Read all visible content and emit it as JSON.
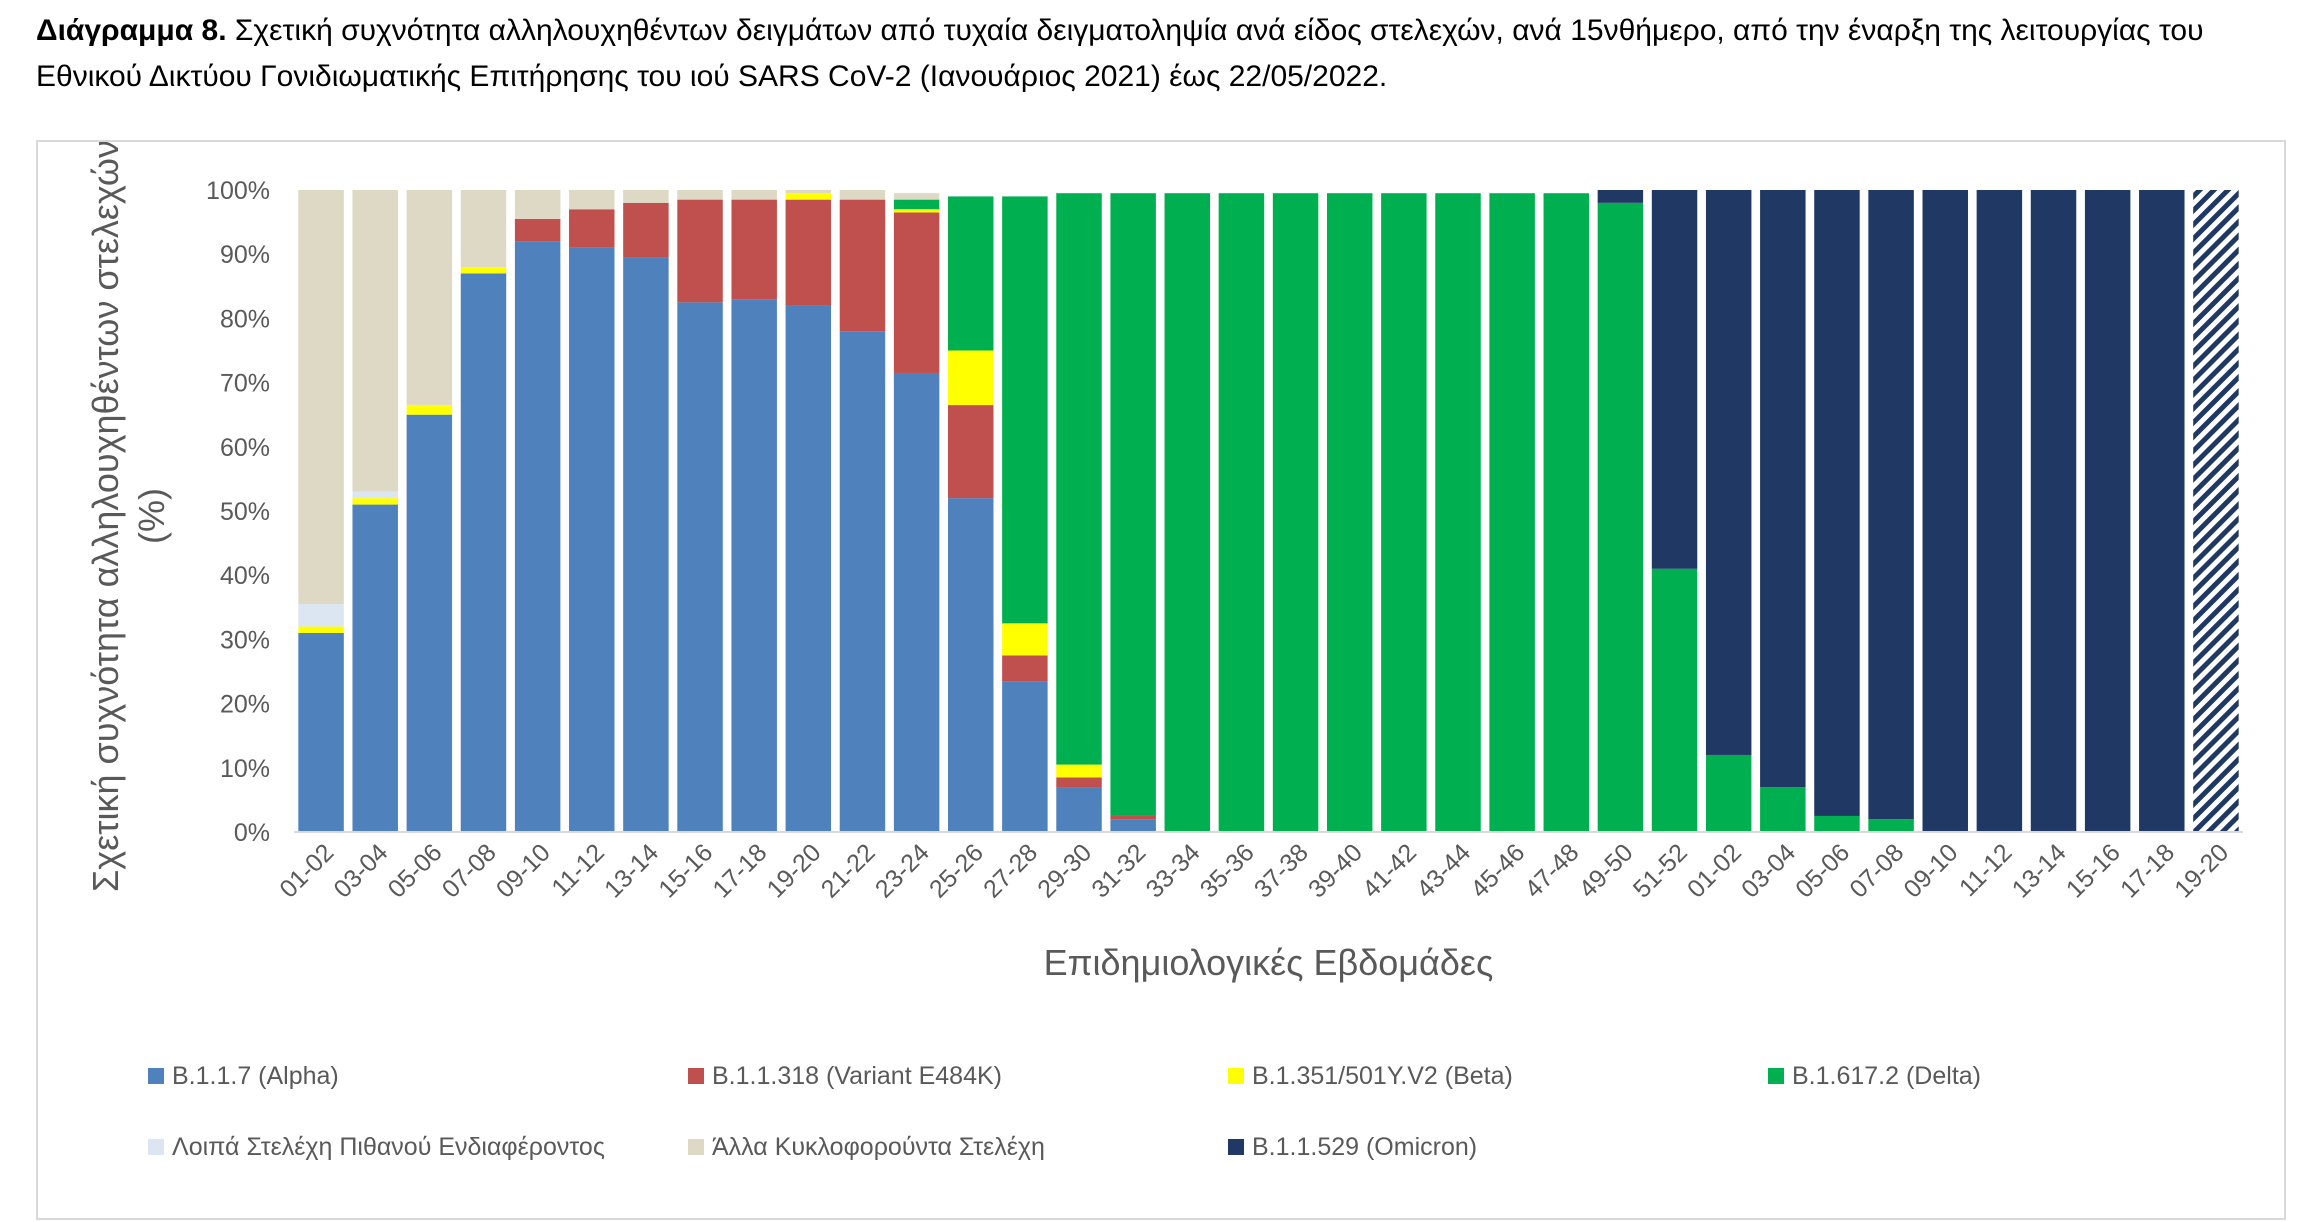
{
  "caption": {
    "bold": "Διάγραμμα 8.",
    "text": "Σχετική συχνότητα αλληλουχηθέντων δειγμάτων από τυχαία δειγματοληψία ανά είδος στελεχών, ανά 15νθήμερο, από την έναρξη της λειτουργίας του Εθνικού Δικτύου Γονιδιωματικής Επιτήρησης του ιού SARS CoV-2 (Ιανουάριος 2021) έως 22/05/2022."
  },
  "chart_data": {
    "type": "bar",
    "stacked": true,
    "xlabel": "Επιδημιολογικές Εβδομάδες",
    "ylabel": "Σχετική συχνότητα αλληλουχηθέντων στελεχών (%)",
    "ylim": [
      0,
      100
    ],
    "yticks": [
      "0%",
      "10%",
      "20%",
      "30%",
      "40%",
      "50%",
      "60%",
      "70%",
      "80%",
      "90%",
      "100%"
    ],
    "grid": false,
    "legend_position": "bottom",
    "categories": [
      "01-02",
      "03-04",
      "05-06",
      "07-08",
      "09-10",
      "11-12",
      "13-14",
      "15-16",
      "17-18",
      "19-20",
      "21-22",
      "23-24",
      "25-26",
      "27-28",
      "29-30",
      "31-32",
      "33-34",
      "35-36",
      "37-38",
      "39-40",
      "41-42",
      "43-44",
      "45-46",
      "47-48",
      "49-50",
      "51-52",
      "01-02",
      "03-04",
      "05-06",
      "07-08",
      "09-10",
      "11-12",
      "13-14",
      "15-16",
      "17-18",
      "19-20"
    ],
    "last_bar_hatched": true,
    "series": [
      {
        "name": "B.1.1.7 (Alpha)",
        "color": "#4f81bd",
        "values": [
          31,
          51,
          65,
          87,
          92,
          91,
          89.5,
          82.5,
          83,
          82,
          78,
          71.5,
          52,
          23.5,
          7,
          2,
          0,
          0,
          0,
          0,
          0,
          0,
          0,
          0,
          0,
          0,
          0,
          0,
          0,
          0,
          0,
          0,
          0,
          0,
          0,
          0
        ]
      },
      {
        "name": "B.1.1.318 (Variant E484K)",
        "color": "#c0504d",
        "values": [
          0,
          0,
          0,
          0,
          3.5,
          6,
          8.5,
          16,
          15.5,
          16.5,
          20.5,
          25,
          14.5,
          4,
          1.5,
          0.5,
          0,
          0,
          0,
          0,
          0,
          0,
          0,
          0,
          0,
          0,
          0,
          0,
          0,
          0,
          0,
          0,
          0,
          0,
          0,
          0
        ]
      },
      {
        "name": "B.1.351/501Y.V2 (Beta)",
        "color": "#ffff00",
        "values": [
          1,
          1,
          1.5,
          1,
          0,
          0,
          0,
          0,
          0,
          1,
          0,
          0.5,
          8.5,
          5,
          2,
          0,
          0,
          0,
          0,
          0,
          0,
          0,
          0,
          0,
          0,
          0,
          0,
          0,
          0,
          0,
          0,
          0,
          0,
          0,
          0,
          0
        ]
      },
      {
        "name": "B.1.617.2 (Delta)",
        "color": "#00b050",
        "values": [
          0,
          0,
          0,
          0,
          0,
          0,
          0,
          0,
          0,
          0,
          0,
          1.5,
          24,
          66.5,
          89,
          97,
          99.5,
          99.5,
          99.5,
          99.5,
          99.5,
          99.5,
          99.5,
          99.5,
          98,
          41,
          12,
          7,
          2.5,
          2,
          0,
          0,
          0,
          0,
          0,
          0
        ]
      },
      {
        "name": "Λοιπά Στελέχη Πιθανού Ενδιαφέροντος",
        "color": "#dce6f2",
        "values": [
          3.5,
          1,
          0,
          0,
          0,
          0,
          0,
          0,
          0,
          0,
          0,
          0,
          0,
          0,
          0,
          0,
          0,
          0,
          0,
          0,
          0,
          0,
          0,
          0,
          0,
          0,
          0,
          0,
          0,
          0,
          0,
          0,
          0,
          0,
          0,
          0
        ]
      },
      {
        "name": "Άλλα Κυκλοφορούντα Στελέχη",
        "color": "#ddd9c4",
        "values": [
          64.5,
          47,
          33.5,
          12,
          4.5,
          3,
          2,
          1.5,
          1.5,
          0.5,
          1.5,
          1,
          0,
          0,
          0,
          0,
          0,
          0,
          0,
          0,
          0,
          0,
          0,
          0,
          0,
          0,
          0,
          0,
          0,
          0,
          0,
          0,
          0,
          0,
          0,
          0
        ]
      },
      {
        "name": "B.1.1.529 (Omicron)",
        "color": "#1f3864",
        "values": [
          0,
          0,
          0,
          0,
          0,
          0,
          0,
          0,
          0,
          0,
          0,
          0,
          0,
          0,
          0,
          0,
          0,
          0,
          0,
          0,
          0,
          0,
          0,
          0,
          2,
          59,
          88,
          93,
          97.5,
          98,
          100,
          100,
          100,
          100,
          100,
          100
        ]
      }
    ]
  },
  "legend": [
    {
      "label": "B.1.1.7 (Alpha)",
      "color": "#4f81bd"
    },
    {
      "label": "B.1.1.318 (Variant E484K)",
      "color": "#c0504d"
    },
    {
      "label": "B.1.351/501Y.V2 (Beta)",
      "color": "#ffff00"
    },
    {
      "label": "B.1.617.2 (Delta)",
      "color": "#00b050"
    },
    {
      "label": "Λοιπά Στελέχη Πιθανού Ενδιαφέροντος",
      "color": "#dce6f2"
    },
    {
      "label": "Άλλα Κυκλοφορούντα Στελέχη",
      "color": "#ddd9c4"
    },
    {
      "label": "B.1.1.529 (Omicron)",
      "color": "#1f3864"
    }
  ]
}
